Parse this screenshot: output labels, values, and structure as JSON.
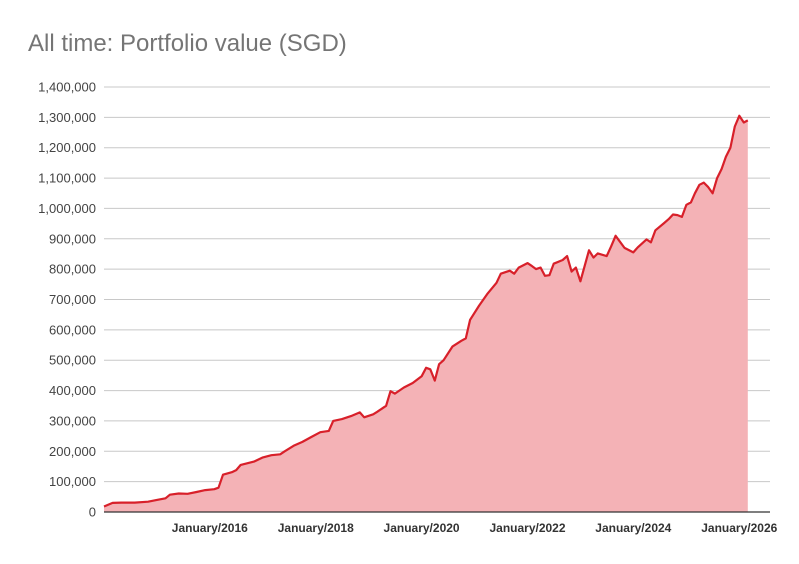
{
  "title": "All time: Portfolio value (SGD)",
  "colors": {
    "line": "#d8202a",
    "area": "#f4b2b6",
    "grid": "#c8c8c8",
    "axis": "#333333"
  },
  "chart_data": {
    "type": "area",
    "title": "All time: Portfolio value (SGD)",
    "xlabel": "",
    "ylabel": "",
    "xlim": [
      "2014-01-01",
      "2026-08-01"
    ],
    "ylim": [
      0,
      1400000
    ],
    "grid": true,
    "legend": "none",
    "y_ticks": [
      0,
      100000,
      200000,
      300000,
      400000,
      500000,
      600000,
      700000,
      800000,
      900000,
      1000000,
      1100000,
      1200000,
      1300000,
      1400000
    ],
    "y_tick_labels": [
      "0",
      "100,000",
      "200,000",
      "300,000",
      "400,000",
      "500,000",
      "600,000",
      "700,000",
      "800,000",
      "900,000",
      "1,000,000",
      "1,100,000",
      "1,200,000",
      "1,300,000",
      "1,400,000"
    ],
    "x_ticks": [
      "2016-01-01",
      "2018-01-01",
      "2020-01-01",
      "2022-01-01",
      "2024-01-01",
      "2026-01-01"
    ],
    "x_tick_labels": [
      "January/2016",
      "January/2018",
      "January/2020",
      "January/2022",
      "January/2024",
      "January/2026"
    ],
    "points": [
      [
        "2014-01-01",
        18000
      ],
      [
        "2014-03-01",
        30000
      ],
      [
        "2014-05-01",
        31000
      ],
      [
        "2014-08-01",
        31000
      ],
      [
        "2014-11-01",
        34000
      ],
      [
        "2015-01-01",
        40000
      ],
      [
        "2015-03-01",
        45000
      ],
      [
        "2015-04-01",
        57000
      ],
      [
        "2015-06-01",
        61000
      ],
      [
        "2015-08-01",
        60000
      ],
      [
        "2015-10-01",
        66000
      ],
      [
        "2015-12-01",
        72000
      ],
      [
        "2016-02-01",
        75000
      ],
      [
        "2016-03-01",
        80000
      ],
      [
        "2016-04-01",
        123000
      ],
      [
        "2016-06-01",
        131000
      ],
      [
        "2016-07-01",
        138000
      ],
      [
        "2016-08-01",
        155000
      ],
      [
        "2016-11-01",
        166000
      ],
      [
        "2017-01-01",
        180000
      ],
      [
        "2017-03-01",
        187000
      ],
      [
        "2017-05-01",
        190000
      ],
      [
        "2017-06-01",
        200000
      ],
      [
        "2017-08-01",
        218000
      ],
      [
        "2017-10-01",
        231000
      ],
      [
        "2017-12-01",
        247000
      ],
      [
        "2018-02-01",
        263000
      ],
      [
        "2018-04-01",
        267000
      ],
      [
        "2018-05-01",
        300000
      ],
      [
        "2018-07-01",
        306000
      ],
      [
        "2018-09-01",
        316000
      ],
      [
        "2018-11-01",
        328000
      ],
      [
        "2018-12-01",
        312000
      ],
      [
        "2019-02-01",
        322000
      ],
      [
        "2019-03-01",
        330000
      ],
      [
        "2019-05-01",
        350000
      ],
      [
        "2019-06-01",
        398000
      ],
      [
        "2019-07-01",
        390000
      ],
      [
        "2019-09-01",
        410000
      ],
      [
        "2019-11-01",
        425000
      ],
      [
        "2020-01-01",
        447000
      ],
      [
        "2020-02-01",
        475000
      ],
      [
        "2020-03-01",
        470000
      ],
      [
        "2020-04-01",
        433000
      ],
      [
        "2020-05-01",
        487000
      ],
      [
        "2020-06-01",
        500000
      ],
      [
        "2020-08-01",
        545000
      ],
      [
        "2020-10-01",
        564000
      ],
      [
        "2020-11-01",
        572000
      ],
      [
        "2020-12-01",
        633000
      ],
      [
        "2021-02-01",
        680000
      ],
      [
        "2021-04-01",
        720000
      ],
      [
        "2021-06-01",
        755000
      ],
      [
        "2021-07-01",
        785000
      ],
      [
        "2021-09-01",
        795000
      ],
      [
        "2021-10-01",
        785000
      ],
      [
        "2021-11-01",
        805000
      ],
      [
        "2022-01-01",
        820000
      ],
      [
        "2022-02-01",
        810000
      ],
      [
        "2022-03-01",
        800000
      ],
      [
        "2022-04-01",
        805000
      ],
      [
        "2022-05-01",
        778000
      ],
      [
        "2022-06-01",
        780000
      ],
      [
        "2022-07-01",
        818000
      ],
      [
        "2022-09-01",
        830000
      ],
      [
        "2022-10-01",
        843000
      ],
      [
        "2022-11-01",
        792000
      ],
      [
        "2022-12-01",
        805000
      ],
      [
        "2023-01-01",
        760000
      ],
      [
        "2023-03-01",
        862000
      ],
      [
        "2023-04-01",
        838000
      ],
      [
        "2023-05-01",
        852000
      ],
      [
        "2023-07-01",
        843000
      ],
      [
        "2023-08-01",
        875000
      ],
      [
        "2023-09-01",
        910000
      ],
      [
        "2023-11-01",
        870000
      ],
      [
        "2024-01-01",
        855000
      ],
      [
        "2024-02-01",
        872000
      ],
      [
        "2024-04-01",
        898000
      ],
      [
        "2024-05-01",
        888000
      ],
      [
        "2024-06-01",
        928000
      ],
      [
        "2024-08-01",
        952000
      ],
      [
        "2024-09-01",
        965000
      ],
      [
        "2024-10-01",
        980000
      ],
      [
        "2024-11-01",
        978000
      ],
      [
        "2024-12-01",
        972000
      ],
      [
        "2025-01-01",
        1012000
      ],
      [
        "2025-02-01",
        1020000
      ],
      [
        "2025-03-01",
        1050000
      ],
      [
        "2025-04-01",
        1078000
      ],
      [
        "2025-05-01",
        1085000
      ],
      [
        "2025-06-01",
        1070000
      ],
      [
        "2025-07-01",
        1050000
      ],
      [
        "2025-08-01",
        1100000
      ],
      [
        "2025-09-01",
        1130000
      ],
      [
        "2025-10-01",
        1170000
      ],
      [
        "2025-11-01",
        1200000
      ],
      [
        "2025-12-01",
        1270000
      ],
      [
        "2026-01-01",
        1305000
      ],
      [
        "2026-02-01",
        1283000
      ],
      [
        "2026-03-01",
        1290000
      ]
    ]
  }
}
